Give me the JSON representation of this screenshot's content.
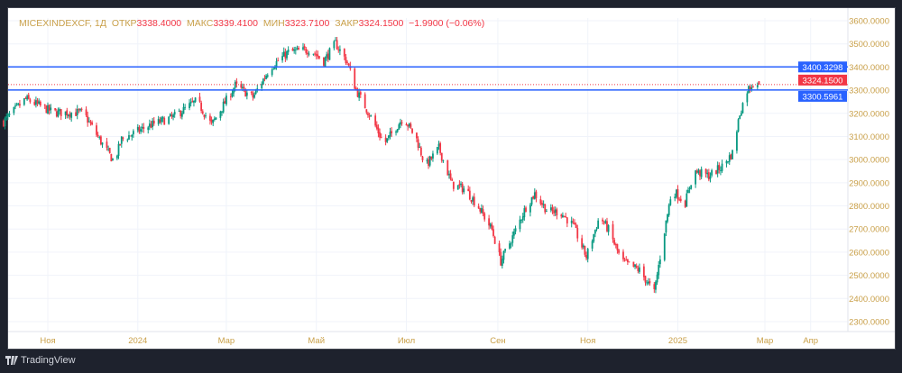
{
  "legend": {
    "symbol": "MICEXINDEXCF, 1Д",
    "open_label": "ОТКР",
    "open": "3338.4000",
    "high_label": "МАКС",
    "high": "3339.4100",
    "low_label": "МИН",
    "low": "3323.7100",
    "close_label": "ЗАКР",
    "close": "3324.1500",
    "change": "−1.9900 (−0.06%)"
  },
  "footer": {
    "brand": "TradingView"
  },
  "colors": {
    "up": "#089981",
    "down": "#f23645",
    "hline": "#2962ff",
    "axis_text": "#c9a04a",
    "background": "#ffffff",
    "frame": "#1e222d"
  },
  "chart_data": {
    "type": "candlestick",
    "symbol": "MICEXINDEXCF",
    "interval": "1Д",
    "ylim": [
      2250,
      3650
    ],
    "y_ticks": [
      "3600.0000",
      "3500.0000",
      "3400.0000",
      "3300.0000",
      "3200.0000",
      "3100.0000",
      "3000.0000",
      "2900.0000",
      "2800.0000",
      "2700.0000",
      "2600.0000",
      "2500.0000",
      "2400.0000",
      "2300.0000"
    ],
    "x_ticks": [
      {
        "label": "Ноя",
        "date": "2023-11-01"
      },
      {
        "label": "2024",
        "date": "2024-01-01"
      },
      {
        "label": "Мар",
        "date": "2024-03-01"
      },
      {
        "label": "Май",
        "date": "2024-05-01"
      },
      {
        "label": "Июл",
        "date": "2024-07-01"
      },
      {
        "label": "Сен",
        "date": "2024-09-01"
      },
      {
        "label": "Ноя",
        "date": "2024-11-01"
      },
      {
        "label": "2025",
        "date": "2025-01-01"
      },
      {
        "label": "Мар",
        "date": "2025-03-01"
      },
      {
        "label": "Апр",
        "date": "2025-04-01"
      }
    ],
    "grid": true,
    "horizontal_lines": [
      {
        "value": 3400.3298,
        "label": "3400.3298"
      },
      {
        "value": 3300.5961,
        "label": "3300.5961"
      }
    ],
    "last_price": {
      "value": 3324.15,
      "label": "3324.1500"
    },
    "last_bar": {
      "open": 3338.4,
      "high": 3339.41,
      "low": 3323.71,
      "close": 3324.15
    },
    "approx_closes": [
      [
        "2023-10-02",
        3164
      ],
      [
        "2023-10-17",
        3262
      ],
      [
        "2023-11-05",
        3203
      ],
      [
        "2023-11-25",
        3203
      ],
      [
        "2023-12-08",
        3067
      ],
      [
        "2023-12-16",
        2990
      ],
      [
        "2023-12-21",
        3087
      ],
      [
        "2024-01-08",
        3145
      ],
      [
        "2024-01-25",
        3184
      ],
      [
        "2024-02-10",
        3254
      ],
      [
        "2024-02-20",
        3150
      ],
      [
        "2024-03-07",
        3320
      ],
      [
        "2024-03-19",
        3270
      ],
      [
        "2024-03-31",
        3400
      ],
      [
        "2024-04-12",
        3464
      ],
      [
        "2024-04-27",
        3475
      ],
      [
        "2024-05-06",
        3425
      ],
      [
        "2024-05-14",
        3502
      ],
      [
        "2024-05-22",
        3420
      ],
      [
        "2024-05-28",
        3300
      ],
      [
        "2024-06-07",
        3184
      ],
      [
        "2024-06-16",
        3067
      ],
      [
        "2024-06-29",
        3184
      ],
      [
        "2024-07-08",
        3087
      ],
      [
        "2024-07-14",
        2970
      ],
      [
        "2024-07-23",
        3050
      ],
      [
        "2024-08-01",
        2892
      ],
      [
        "2024-08-10",
        2872
      ],
      [
        "2024-08-19",
        2795
      ],
      [
        "2024-08-28",
        2697
      ],
      [
        "2024-09-03",
        2560
      ],
      [
        "2024-09-12",
        2680
      ],
      [
        "2024-09-20",
        2795
      ],
      [
        "2024-09-26",
        2853
      ],
      [
        "2024-10-05",
        2775
      ],
      [
        "2024-10-13",
        2775
      ],
      [
        "2024-10-22",
        2716
      ],
      [
        "2024-10-31",
        2580
      ],
      [
        "2024-11-09",
        2755
      ],
      [
        "2024-11-15",
        2697
      ],
      [
        "2024-11-24",
        2560
      ],
      [
        "2024-12-06",
        2522
      ],
      [
        "2024-12-16",
        2425
      ],
      [
        "2024-12-22",
        2658
      ],
      [
        "2024-12-28",
        2872
      ],
      [
        "2025-01-06",
        2814
      ],
      [
        "2025-01-12",
        2950
      ],
      [
        "2025-01-22",
        2930
      ],
      [
        "2025-01-31",
        2970
      ],
      [
        "2025-02-07",
        3028
      ],
      [
        "2025-02-12",
        3200
      ],
      [
        "2025-02-17",
        3300
      ],
      [
        "2025-02-22",
        3340
      ],
      [
        "2025-02-25",
        3324.15
      ]
    ]
  }
}
